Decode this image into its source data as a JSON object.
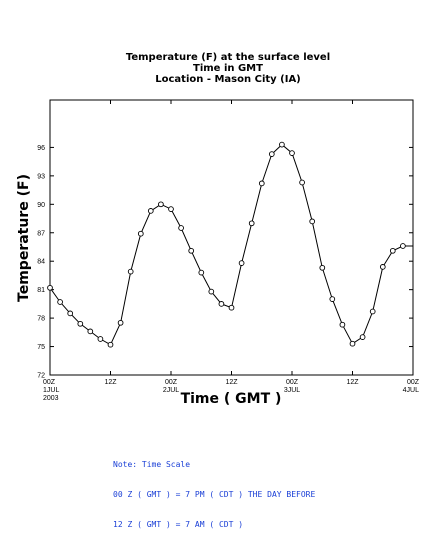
{
  "chart_data": {
    "type": "line",
    "title": "Temperature (F) at the surface level",
    "subtitle_lines": [
      "Time in GMT",
      "Location - Mason City (IA)"
    ],
    "xlabel": "Time ( GMT )",
    "ylabel": "Temperature (F)",
    "ylim": [
      72,
      101
    ],
    "yticks": [
      72,
      75,
      78,
      81,
      84,
      87,
      90,
      93,
      96
    ],
    "xlim": [
      0,
      72
    ],
    "xtick_labels": [
      {
        "x": 0,
        "lines": [
          "00Z",
          "1JUL",
          "2003"
        ]
      },
      {
        "x": 12,
        "lines": [
          "12Z"
        ]
      },
      {
        "x": 24,
        "lines": [
          "00Z",
          "2JUL"
        ]
      },
      {
        "x": 36,
        "lines": [
          "12Z"
        ]
      },
      {
        "x": 48,
        "lines": [
          "00Z",
          "3JUL"
        ]
      },
      {
        "x": 60,
        "lines": [
          "12Z"
        ]
      },
      {
        "x": 72,
        "lines": [
          "00Z",
          "4JUL"
        ]
      }
    ],
    "x_unit": "hours since 00Z 1 JUL 2003",
    "x": [
      0,
      2,
      4,
      6,
      8,
      10,
      12,
      14,
      16,
      18,
      20,
      22,
      24,
      26,
      28,
      30,
      32,
      34,
      36,
      38,
      40,
      42,
      44,
      46,
      48,
      50,
      52,
      54,
      56,
      58,
      60,
      62,
      64,
      66,
      68,
      70,
      72
    ],
    "values": [
      81.2,
      79.7,
      78.5,
      77.4,
      76.6,
      75.8,
      75.2,
      77.5,
      82.9,
      86.9,
      89.3,
      90.0,
      89.5,
      87.5,
      85.1,
      82.8,
      80.8,
      79.5,
      79.1,
      83.8,
      88.0,
      92.2,
      95.3,
      96.3,
      95.4,
      92.3,
      88.2,
      83.3,
      80.0,
      77.3,
      75.3,
      76.0,
      78.7,
      83.4,
      85.1,
      85.6,
      85.6
    ],
    "grid": false,
    "line_color": "#000000",
    "marker": "open-circle"
  },
  "note": {
    "lines": [
      "Note: Time Scale",
      "00 Z ( GMT ) = 7 PM ( CDT ) THE DAY BEFORE",
      "12 Z ( GMT ) = 7 AM ( CDT )"
    ],
    "color": "#1a3fd6"
  }
}
